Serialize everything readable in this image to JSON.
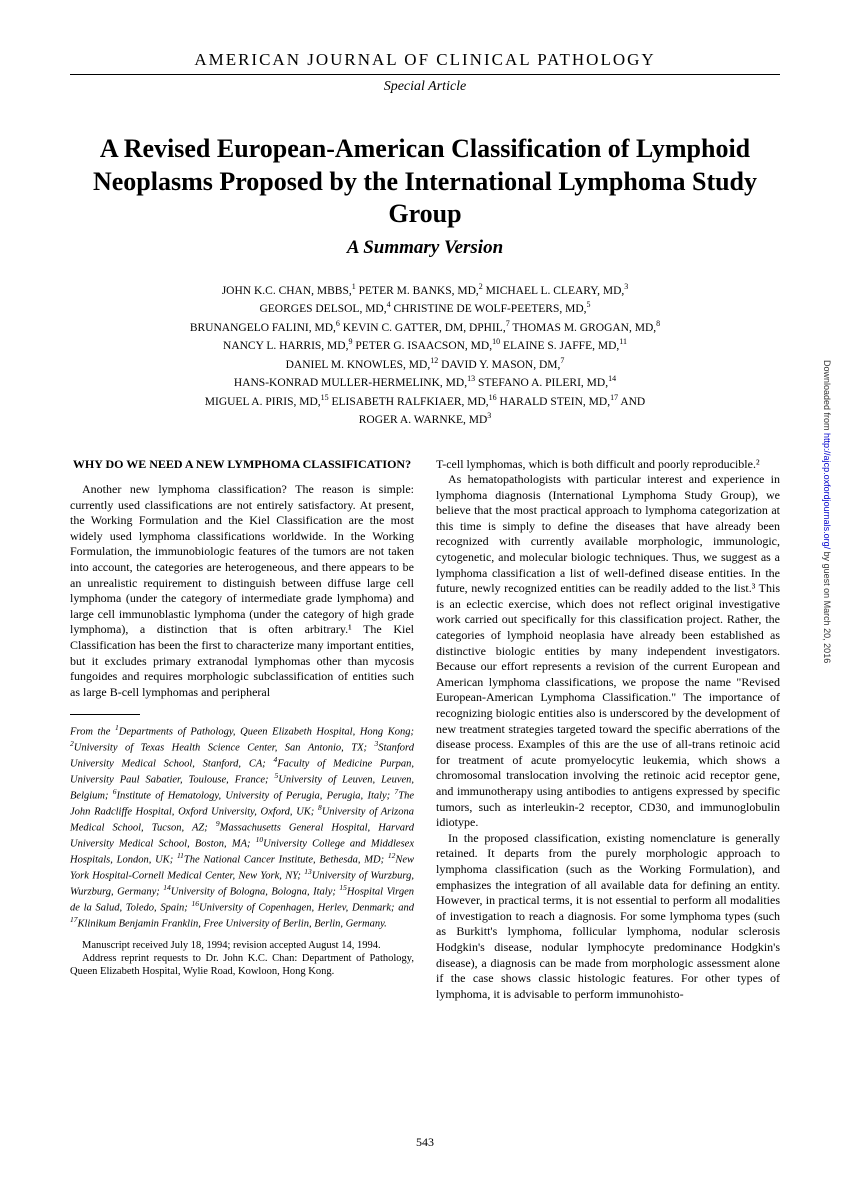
{
  "journal_name": "AMERICAN JOURNAL OF CLINICAL PATHOLOGY",
  "article_type": "Special Article",
  "title": "A Revised European-American Classification of Lymphoid Neoplasms Proposed by the International Lymphoma Study Group",
  "subtitle": "A Summary Version",
  "authors_html": "JOHN K.C. CHAN, MBBS,<sup>1</sup> PETER M. BANKS, MD,<sup>2</sup> MICHAEL L. CLEARY, MD,<sup>3</sup><br>GEORGES DELSOL, MD,<sup>4</sup> CHRISTINE DE WOLF-PEETERS, MD,<sup>5</sup><br>BRUNANGELO FALINI, MD,<sup>6</sup> KEVIN C. GATTER, DM, DPHIL,<sup>7</sup> THOMAS M. GROGAN, MD,<sup>8</sup><br>NANCY L. HARRIS, MD,<sup>9</sup> PETER G. ISAACSON, MD,<sup>10</sup> ELAINE S. JAFFE, MD,<sup>11</sup><br>DANIEL M. KNOWLES, MD,<sup>12</sup> DAVID Y. MASON, DM,<sup>7</sup><br>HANS-KONRAD MULLER-HERMELINK, MD,<sup>13</sup> STEFANO A. PILERI, MD,<sup>14</sup><br>MIGUEL A. PIRIS, MD,<sup>15</sup> ELISABETH RALFKIAER, MD,<sup>16</sup> HARALD STEIN, MD,<sup>17</sup> AND<br>ROGER A. WARNKE, MD<sup>3</sup>",
  "section_heading": "WHY DO WE NEED A NEW LYMPHOMA CLASSIFICATION?",
  "col1_para": "Another new lymphoma classification? The reason is simple: currently used classifications are not entirely satisfactory. At present, the Working Formulation and the Kiel Classification are the most widely used lymphoma classifications worldwide. In the Working Formulation, the immunobiologic features of the tumors are not taken into account, the categories are heterogeneous, and there appears to be an unrealistic requirement to distinguish between diffuse large cell lymphoma (under the category of intermediate grade lymphoma) and large cell immunoblastic lymphoma (under the category of high grade lymphoma), a distinction that is often arbitrary.¹ The Kiel Classification has been the first to characterize many important entities, but it excludes primary extranodal lymphomas other than mycosis fungoides and requires morphologic subclassification of entities such as large B-cell lymphomas and peripheral",
  "affiliations_html": "From the <sup>1</sup>Departments of Pathology, Queen Elizabeth Hospital, Hong Kong; <sup>2</sup>University of Texas Health Science Center, San Antonio, TX; <sup>3</sup>Stanford University Medical School, Stanford, CA; <sup>4</sup>Faculty of Medicine Purpan, University Paul Sabatier, Toulouse, France; <sup>5</sup>University of Leuven, Leuven, Belgium; <sup>6</sup>Institute of Hematology, University of Perugia, Perugia, Italy; <sup>7</sup>The John Radcliffe Hospital, Oxford University, Oxford, UK; <sup>8</sup>University of Arizona Medical School, Tucson, AZ; <sup>9</sup>Massachusetts General Hospital, Harvard University Medical School, Boston, MA; <sup>10</sup>University College and Middlesex Hospitals, London, UK; <sup>11</sup>The National Cancer Institute, Bethesda, MD; <sup>12</sup>New York Hospital-Cornell Medical Center, New York, NY; <sup>13</sup>University of Wurzburg, Wurzburg, Germany; <sup>14</sup>University of Bologna, Bologna, Italy; <sup>15</sup>Hospital Virgen de la Salud, Toledo, Spain; <sup>16</sup>University of Copenhagen, Herlev, Denmark; and <sup>17</sup>Klinikum Benjamin Franklin, Free University of Berlin, Berlin, Germany.",
  "manuscript_received": "Manuscript received July 18, 1994; revision accepted August 14, 1994.",
  "reprint_address": "Address reprint requests to Dr. John K.C. Chan: Department of Pathology, Queen Elizabeth Hospital, Wylie Road, Kowloon, Hong Kong.",
  "col2_para1": "T-cell lymphomas, which is both difficult and poorly reproducible.²",
  "col2_para2": "As hematopathologists with particular interest and experience in lymphoma diagnosis (International Lymphoma Study Group), we believe that the most practical approach to lymphoma categorization at this time is simply to define the diseases that have already been recognized with currently available morphologic, immunologic, cytogenetic, and molecular biologic techniques. Thus, we suggest as a lymphoma classification a list of well-defined disease entities. In the future, newly recognized entities can be readily added to the list.³ This is an eclectic exercise, which does not reflect original investigative work carried out specifically for this classification project. Rather, the categories of lymphoid neoplasia have already been established as distinctive biologic entities by many independent investigators. Because our effort represents a revision of the current European and American lymphoma classifications, we propose the name \"Revised European-American Lymphoma Classification.\" The importance of recognizing biologic entities also is underscored by the development of new treatment strategies targeted toward the specific aberrations of the disease process. Examples of this are the use of all-trans retinoic acid for treatment of acute promyelocytic leukemia, which shows a chromosomal translocation involving the retinoic acid receptor gene, and immunotherapy using antibodies to antigens expressed by specific tumors, such as interleukin-2 receptor, CD30, and immunoglobulin idiotype.",
  "col2_para3": "In the proposed classification, existing nomenclature is generally retained. It departs from the purely morphologic approach to lymphoma classification (such as the Working Formulation), and emphasizes the integration of all available data for defining an entity. However, in practical terms, it is not essential to perform all modalities of investigation to reach a diagnosis. For some lymphoma types (such as Burkitt's lymphoma, follicular lymphoma, nodular sclerosis Hodgkin's disease, nodular lymphocyte predominance Hodgkin's disease), a diagnosis can be made from morphologic assessment alone if the case shows classic histologic features. For other types of lymphoma, it is advisable to perform immunohisto-",
  "page_number": "543",
  "side_note_prefix": "Downloaded from ",
  "side_note_link": "http://ajcp.oxfordjournals.org/",
  "side_note_suffix": " by guest on March 20, 2016"
}
